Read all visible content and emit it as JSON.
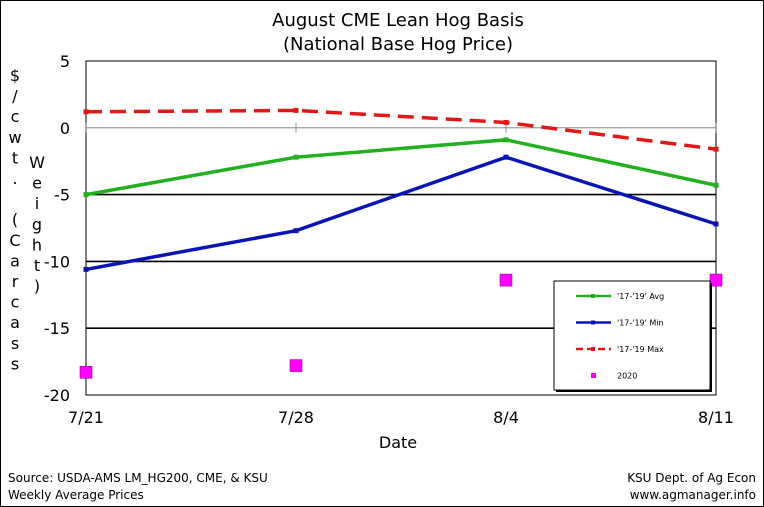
{
  "chart_data": {
    "type": "line",
    "title": "August CME Lean Hog Basis",
    "subtitle": "(National Base Hog Price)",
    "xlabel": "Date",
    "ylabel_chars": [
      "$",
      "/",
      "c",
      "w",
      "t",
      ".",
      "",
      "(",
      "C",
      "a",
      "r",
      "c",
      "a",
      "s",
      "s"
    ],
    "ylabel2_chars": [
      "W",
      "e",
      "i",
      "g",
      "h",
      "t",
      ")"
    ],
    "categories": [
      "7/21",
      "7/28",
      "8/4",
      "8/11"
    ],
    "ylim": [
      -20,
      5
    ],
    "yticks": [
      5,
      0,
      -5,
      -10,
      -15,
      -20
    ],
    "ytick_labels": [
      "5",
      "0",
      "-5",
      "-10",
      "-15",
      "-20"
    ],
    "series": [
      {
        "name": "'17-'19' Avg",
        "type": "line",
        "color": "#22b01e",
        "dash": "solid",
        "values": [
          -5.0,
          -2.2,
          -0.9,
          -4.3
        ]
      },
      {
        "name": "'17-'19' Min",
        "type": "line",
        "color": "#0a14b4",
        "dash": "solid",
        "values": [
          -10.6,
          -7.7,
          -2.2,
          -7.2
        ]
      },
      {
        "name": "'17-'19 Max",
        "type": "line",
        "color": "#e01818",
        "dash": "dashed",
        "values": [
          1.2,
          1.3,
          0.4,
          -1.6
        ]
      },
      {
        "name": "2020",
        "type": "scatter",
        "color": "#ff00ff",
        "values": [
          -18.3,
          -17.8,
          -11.4,
          -11.4
        ]
      }
    ],
    "legend_position": "right",
    "grid": "horizontal lines at -5, -10, -15"
  },
  "footer": {
    "source_line1": "Source:  USDA-AMS LM_HG200, CME, & KSU",
    "source_line2": "Weekly Average Prices",
    "credit_line1": "KSU Dept. of Ag Econ",
    "credit_line2": "www.agmanager.info"
  }
}
